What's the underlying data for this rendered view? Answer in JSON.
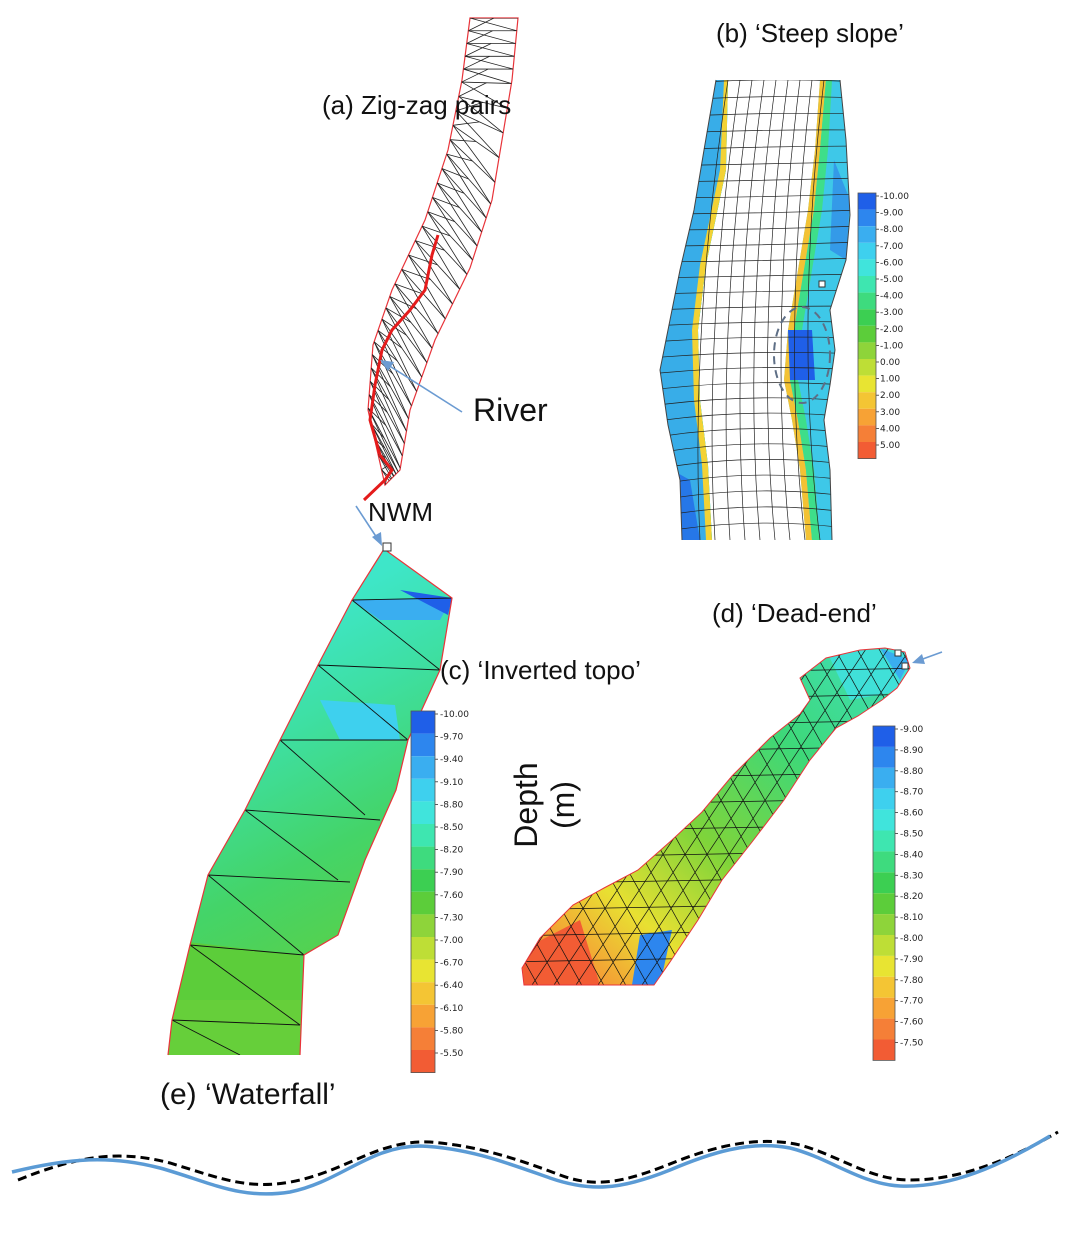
{
  "labels": {
    "a": "(a) Zig-zag pairs",
    "b": "(b) ‘Steep slope’",
    "c": "(c) ‘Inverted topo’",
    "d": "(d) ‘Dead-end’",
    "e": "(e) ‘Waterfall’",
    "river": "River",
    "nwm": "NWM",
    "depth_axis": "Depth (m)"
  },
  "legends": {
    "b": [
      "-10.00",
      "-9.00",
      "-8.00",
      "-7.00",
      "-6.00",
      "-5.00",
      "-4.00",
      "-3.00",
      "-2.00",
      "-1.00",
      "0.00",
      "1.00",
      "2.00",
      "3.00",
      "4.00",
      "5.00"
    ],
    "c": [
      "-10.00",
      "-9.70",
      "-9.40",
      "-9.10",
      "-8.80",
      "-8.50",
      "-8.20",
      "-7.90",
      "-7.60",
      "-7.30",
      "-7.00",
      "-6.70",
      "-6.40",
      "-6.10",
      "-5.80",
      "-5.50"
    ],
    "d": [
      "-9.00",
      "-8.90",
      "-8.80",
      "-8.70",
      "-8.60",
      "-8.50",
      "-8.40",
      "-8.30",
      "-8.20",
      "-8.10",
      "-8.00",
      "-7.90",
      "-7.80",
      "-7.70",
      "-7.60",
      "-7.50"
    ]
  },
  "colors": {
    "scale": [
      "#1f5fe8",
      "#2d86ee",
      "#3aaef0",
      "#3ed0ee",
      "#40e4dc",
      "#3ee6b0",
      "#3edb7e",
      "#3ccf52",
      "#5ccd3a",
      "#8ed43a",
      "#bede36",
      "#e8e432",
      "#f4c534",
      "#f7a235",
      "#f57f37",
      "#f25c34"
    ],
    "mesh": "#111111",
    "boundary": "#e8343a",
    "river": "#e41b1b",
    "arrow": "#6b9bd2",
    "waterfall_solid": "#5b9bd5",
    "waterfall_dashed": "#000000"
  }
}
